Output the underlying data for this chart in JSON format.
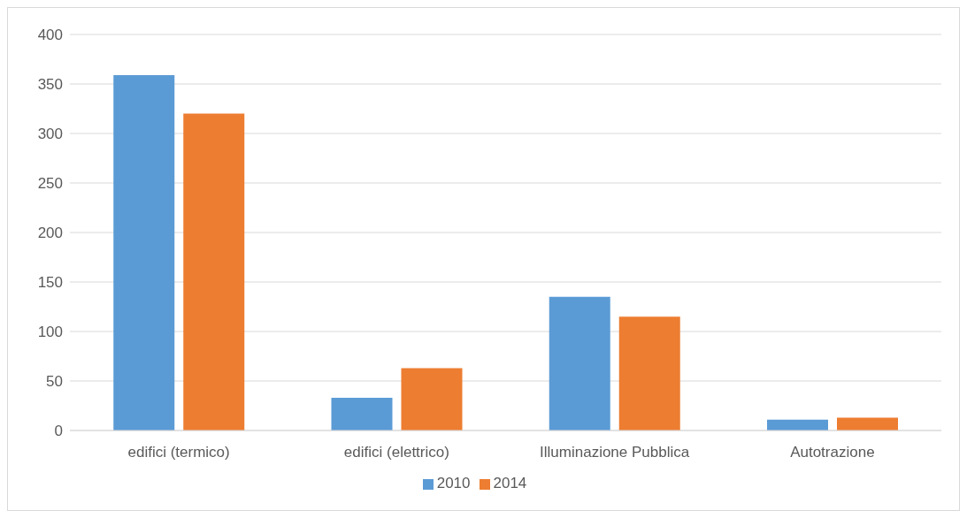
{
  "chart_data": {
    "type": "bar",
    "categories": [
      "edifici (termico)",
      "edifici (elettrico)",
      "Illuminazione Pubblica",
      "Autotrazione"
    ],
    "series": [
      {
        "name": "2010",
        "color": "#5b9bd5",
        "values": [
          359,
          33,
          135,
          11
        ]
      },
      {
        "name": "2014",
        "color": "#ed7d31",
        "values": [
          320,
          63,
          115,
          13
        ]
      }
    ],
    "ylim": [
      0,
      400
    ],
    "yticks": [
      0,
      50,
      100,
      150,
      200,
      250,
      300,
      350,
      400
    ],
    "grid": "y",
    "legend": "bottom"
  }
}
